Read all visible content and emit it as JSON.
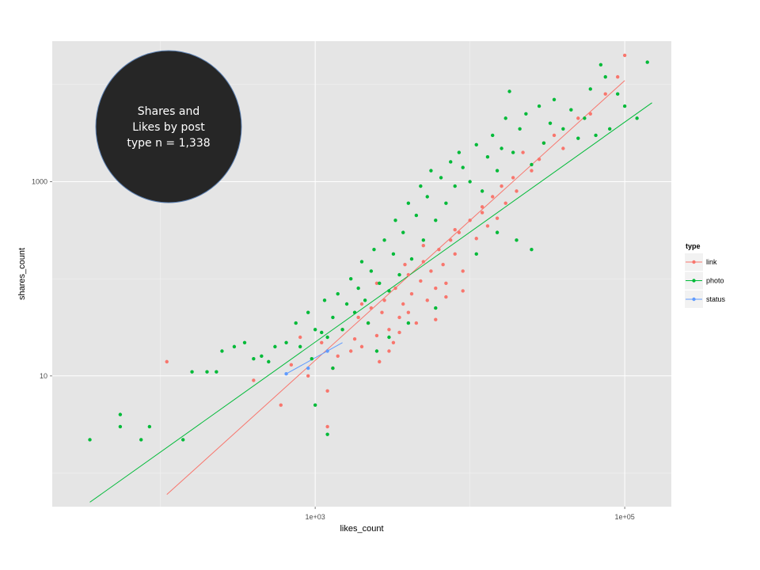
{
  "chart_data": {
    "type": "scatter",
    "title": "",
    "xlabel": "likes_count",
    "ylabel": "shares_count",
    "x_scale": "log10",
    "y_scale": "log10",
    "xlim": [
      20,
      200000
    ],
    "ylim": [
      0.45,
      28000
    ],
    "x_ticks": [
      {
        "value": 1000,
        "label": "1e+03"
      },
      {
        "value": 100000,
        "label": "1e+05"
      }
    ],
    "y_ticks": [
      {
        "value": 10,
        "label": "10"
      },
      {
        "value": 1000,
        "label": "1000"
      }
    ],
    "grid": true,
    "legend": {
      "title": "type",
      "position": "right",
      "entries": [
        {
          "label": "link",
          "color": "#F8766D"
        },
        {
          "label": "photo",
          "color": "#00BA38"
        },
        {
          "label": "status",
          "color": "#619CFF"
        }
      ]
    },
    "annotation": {
      "lines": [
        "Shares and",
        "Likes by post",
        "type n = 1,338"
      ],
      "fill": "#262626",
      "text_color": "#ffffff"
    },
    "series": [
      {
        "name": "link",
        "color": "#F8766D",
        "trend": [
          [
            110,
            0.6
          ],
          [
            100000,
            11000
          ]
        ],
        "points": [
          [
            110,
            14
          ],
          [
            400,
            9
          ],
          [
            600,
            5
          ],
          [
            700,
            13
          ],
          [
            800,
            25
          ],
          [
            900,
            10
          ],
          [
            1100,
            22
          ],
          [
            1200,
            7
          ],
          [
            1200,
            3
          ],
          [
            1300,
            12
          ],
          [
            1400,
            16
          ],
          [
            1500,
            30
          ],
          [
            1700,
            18
          ],
          [
            1800,
            24
          ],
          [
            1900,
            40
          ],
          [
            2000,
            20
          ],
          [
            2200,
            35
          ],
          [
            2300,
            50
          ],
          [
            2500,
            26
          ],
          [
            2600,
            14
          ],
          [
            2700,
            45
          ],
          [
            2800,
            60
          ],
          [
            3000,
            30
          ],
          [
            3200,
            22
          ],
          [
            3300,
            80
          ],
          [
            3500,
            40
          ],
          [
            3700,
            55
          ],
          [
            4000,
            110
          ],
          [
            4200,
            70
          ],
          [
            4500,
            35
          ],
          [
            4800,
            95
          ],
          [
            5000,
            150
          ],
          [
            5300,
            60
          ],
          [
            5600,
            120
          ],
          [
            6000,
            80
          ],
          [
            6300,
            200
          ],
          [
            6700,
            140
          ],
          [
            7000,
            90
          ],
          [
            7500,
            250
          ],
          [
            8000,
            180
          ],
          [
            8500,
            300
          ],
          [
            9000,
            120
          ],
          [
            10000,
            400
          ],
          [
            11000,
            260
          ],
          [
            12000,
            550
          ],
          [
            13000,
            350
          ],
          [
            14000,
            700
          ],
          [
            15000,
            420
          ],
          [
            16000,
            900
          ],
          [
            17000,
            600
          ],
          [
            19000,
            1100
          ],
          [
            20000,
            800
          ],
          [
            22000,
            2000
          ],
          [
            25000,
            1300
          ],
          [
            28000,
            1700
          ],
          [
            30000,
            2500
          ],
          [
            35000,
            3000
          ],
          [
            40000,
            2200
          ],
          [
            50000,
            4500
          ],
          [
            60000,
            5000
          ],
          [
            75000,
            8000
          ],
          [
            90000,
            12000
          ],
          [
            100000,
            20000
          ],
          [
            3000,
            18
          ],
          [
            3500,
            28
          ],
          [
            4000,
            45
          ],
          [
            6000,
            38
          ],
          [
            7000,
            65
          ],
          [
            9000,
            75
          ],
          [
            2000,
            55
          ],
          [
            2500,
            90
          ],
          [
            3800,
            140
          ],
          [
            5000,
            220
          ],
          [
            8000,
            320
          ],
          [
            12000,
            480
          ]
        ]
      },
      {
        "name": "photo",
        "color": "#00BA38",
        "trend": [
          [
            35,
            0.5
          ],
          [
            150000,
            6500
          ]
        ],
        "points": [
          [
            35,
            2.2
          ],
          [
            55,
            4
          ],
          [
            55,
            3
          ],
          [
            75,
            2.2
          ],
          [
            85,
            3
          ],
          [
            140,
            2.2
          ],
          [
            160,
            11
          ],
          [
            200,
            11
          ],
          [
            230,
            11
          ],
          [
            250,
            18
          ],
          [
            300,
            20
          ],
          [
            350,
            22
          ],
          [
            400,
            15
          ],
          [
            450,
            16
          ],
          [
            500,
            14
          ],
          [
            550,
            20
          ],
          [
            650,
            22
          ],
          [
            750,
            35
          ],
          [
            800,
            20
          ],
          [
            900,
            45
          ],
          [
            950,
            15
          ],
          [
            1000,
            30
          ],
          [
            1100,
            28
          ],
          [
            1150,
            60
          ],
          [
            1200,
            25
          ],
          [
            1300,
            40
          ],
          [
            1400,
            70
          ],
          [
            1500,
            30
          ],
          [
            1600,
            55
          ],
          [
            1700,
            100
          ],
          [
            1800,
            45
          ],
          [
            1900,
            80
          ],
          [
            2000,
            150
          ],
          [
            2100,
            60
          ],
          [
            2200,
            35
          ],
          [
            2300,
            120
          ],
          [
            2400,
            200
          ],
          [
            2600,
            90
          ],
          [
            2800,
            250
          ],
          [
            3000,
            75
          ],
          [
            3200,
            180
          ],
          [
            3300,
            400
          ],
          [
            3500,
            110
          ],
          [
            3700,
            300
          ],
          [
            4000,
            600
          ],
          [
            4200,
            160
          ],
          [
            4500,
            450
          ],
          [
            4800,
            900
          ],
          [
            5000,
            250
          ],
          [
            5300,
            700
          ],
          [
            5600,
            1300
          ],
          [
            6000,
            400
          ],
          [
            6500,
            1100
          ],
          [
            7000,
            600
          ],
          [
            7500,
            1600
          ],
          [
            8000,
            900
          ],
          [
            8500,
            2000
          ],
          [
            9000,
            1400
          ],
          [
            10000,
            1000
          ],
          [
            11000,
            2400
          ],
          [
            12000,
            800
          ],
          [
            13000,
            1800
          ],
          [
            14000,
            3000
          ],
          [
            15000,
            1300
          ],
          [
            16000,
            2200
          ],
          [
            17000,
            4500
          ],
          [
            18000,
            8500
          ],
          [
            19000,
            2000
          ],
          [
            21000,
            3500
          ],
          [
            23000,
            5000
          ],
          [
            25000,
            1500
          ],
          [
            28000,
            6000
          ],
          [
            30000,
            2500
          ],
          [
            33000,
            4000
          ],
          [
            35000,
            7000
          ],
          [
            40000,
            3500
          ],
          [
            45000,
            5500
          ],
          [
            50000,
            2800
          ],
          [
            55000,
            4500
          ],
          [
            60000,
            9000
          ],
          [
            65000,
            3000
          ],
          [
            70000,
            16000
          ],
          [
            75000,
            12000
          ],
          [
            80000,
            3500
          ],
          [
            90000,
            8000
          ],
          [
            100000,
            6000
          ],
          [
            120000,
            4500
          ],
          [
            140000,
            17000
          ],
          [
            1300,
            12
          ],
          [
            1000,
            5
          ],
          [
            1200,
            2.5
          ],
          [
            2500,
            18
          ],
          [
            3000,
            25
          ],
          [
            4000,
            35
          ],
          [
            6000,
            50
          ],
          [
            11000,
            180
          ],
          [
            15000,
            300
          ],
          [
            20000,
            250
          ],
          [
            25000,
            200
          ]
        ]
      },
      {
        "name": "status",
        "color": "#619CFF",
        "trend": [
          [
            650,
            10.5
          ],
          [
            1500,
            22
          ]
        ],
        "points": [
          [
            650,
            10.5
          ],
          [
            900,
            12
          ],
          [
            1200,
            18
          ]
        ]
      }
    ]
  }
}
